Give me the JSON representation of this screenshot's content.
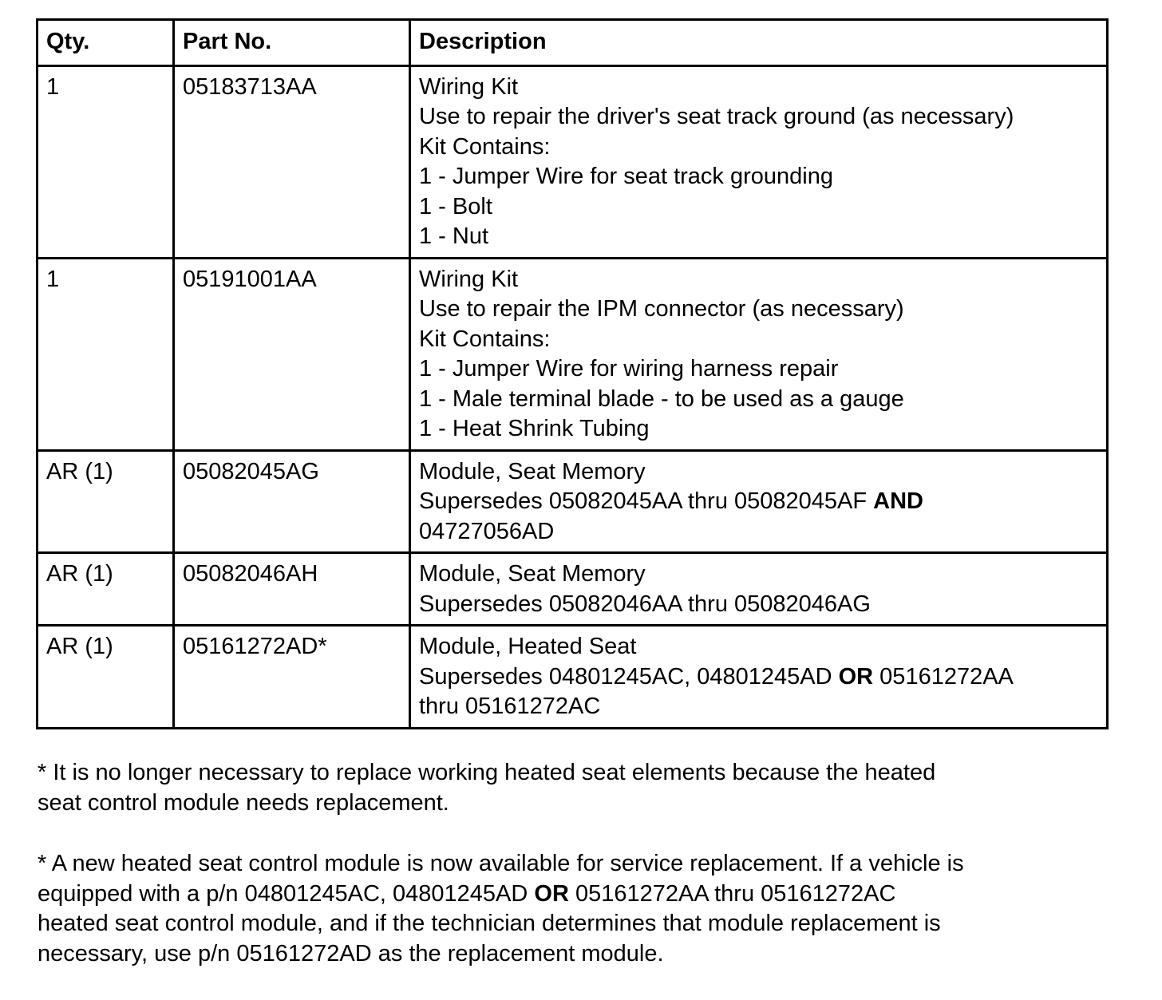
{
  "table": {
    "headers": [
      "Qty.",
      "Part No.",
      "Description"
    ],
    "rows": [
      {
        "qty": "1",
        "part": "05183713AA",
        "description": [
          [
            {
              "t": "Wiring Kit"
            }
          ],
          [
            {
              "t": "Use to repair the driver's seat track ground (as necessary)"
            }
          ],
          [
            {
              "t": "Kit Contains:"
            }
          ],
          [
            {
              "t": "1 - Jumper Wire for seat track grounding"
            }
          ],
          [
            {
              "t": "1 - Bolt"
            }
          ],
          [
            {
              "t": "1 - Nut"
            }
          ]
        ]
      },
      {
        "qty": "1",
        "part": "05191001AA",
        "description": [
          [
            {
              "t": "Wiring Kit"
            }
          ],
          [
            {
              "t": "Use to repair the IPM connector (as necessary)"
            }
          ],
          [
            {
              "t": "Kit Contains:"
            }
          ],
          [
            {
              "t": "1 - Jumper Wire for wiring harness repair"
            }
          ],
          [
            {
              "t": "1 - Male terminal blade - to be used as a gauge"
            }
          ],
          [
            {
              "t": "1 - Heat Shrink Tubing"
            }
          ]
        ]
      },
      {
        "qty": "AR (1)",
        "part": "05082045AG",
        "description": [
          [
            {
              "t": "Module, Seat Memory"
            }
          ],
          [
            {
              "t": "Supersedes 05082045AA thru 05082045AF "
            },
            {
              "t": "AND",
              "b": true
            }
          ],
          [
            {
              "t": "04727056AD"
            }
          ]
        ]
      },
      {
        "qty": "AR (1)",
        "part": "05082046AH",
        "description": [
          [
            {
              "t": "Module, Seat Memory"
            }
          ],
          [
            {
              "t": "Supersedes 05082046AA thru 05082046AG"
            }
          ]
        ]
      },
      {
        "qty": "AR (1)",
        "part": "05161272AD*",
        "description": [
          [
            {
              "t": "Module, Heated Seat"
            }
          ],
          [
            {
              "t": "Supersedes 04801245AC, 04801245AD "
            },
            {
              "t": "OR",
              "b": true
            },
            {
              "t": " 05161272AA"
            }
          ],
          [
            {
              "t": "thru 05161272AC"
            }
          ]
        ]
      }
    ]
  },
  "notes": [
    [
      [
        {
          "t": "* It is no longer necessary to replace working heated seat elements because the heated"
        }
      ],
      [
        {
          "t": "seat control module needs replacement."
        }
      ]
    ],
    [
      [
        {
          "t": "* A new heated seat control module is now available for service replacement. If a vehicle is"
        }
      ],
      [
        {
          "t": "equipped with a p/n 04801245AC, 04801245AD "
        },
        {
          "t": "OR",
          "b": true
        },
        {
          "t": " 05161272AA thru 05161272AC"
        }
      ],
      [
        {
          "t": "heated seat control module, and if the technician determines that module replacement is"
        }
      ],
      [
        {
          "t": "necessary, use p/n 05161272AD as the replacement module."
        }
      ]
    ]
  ]
}
